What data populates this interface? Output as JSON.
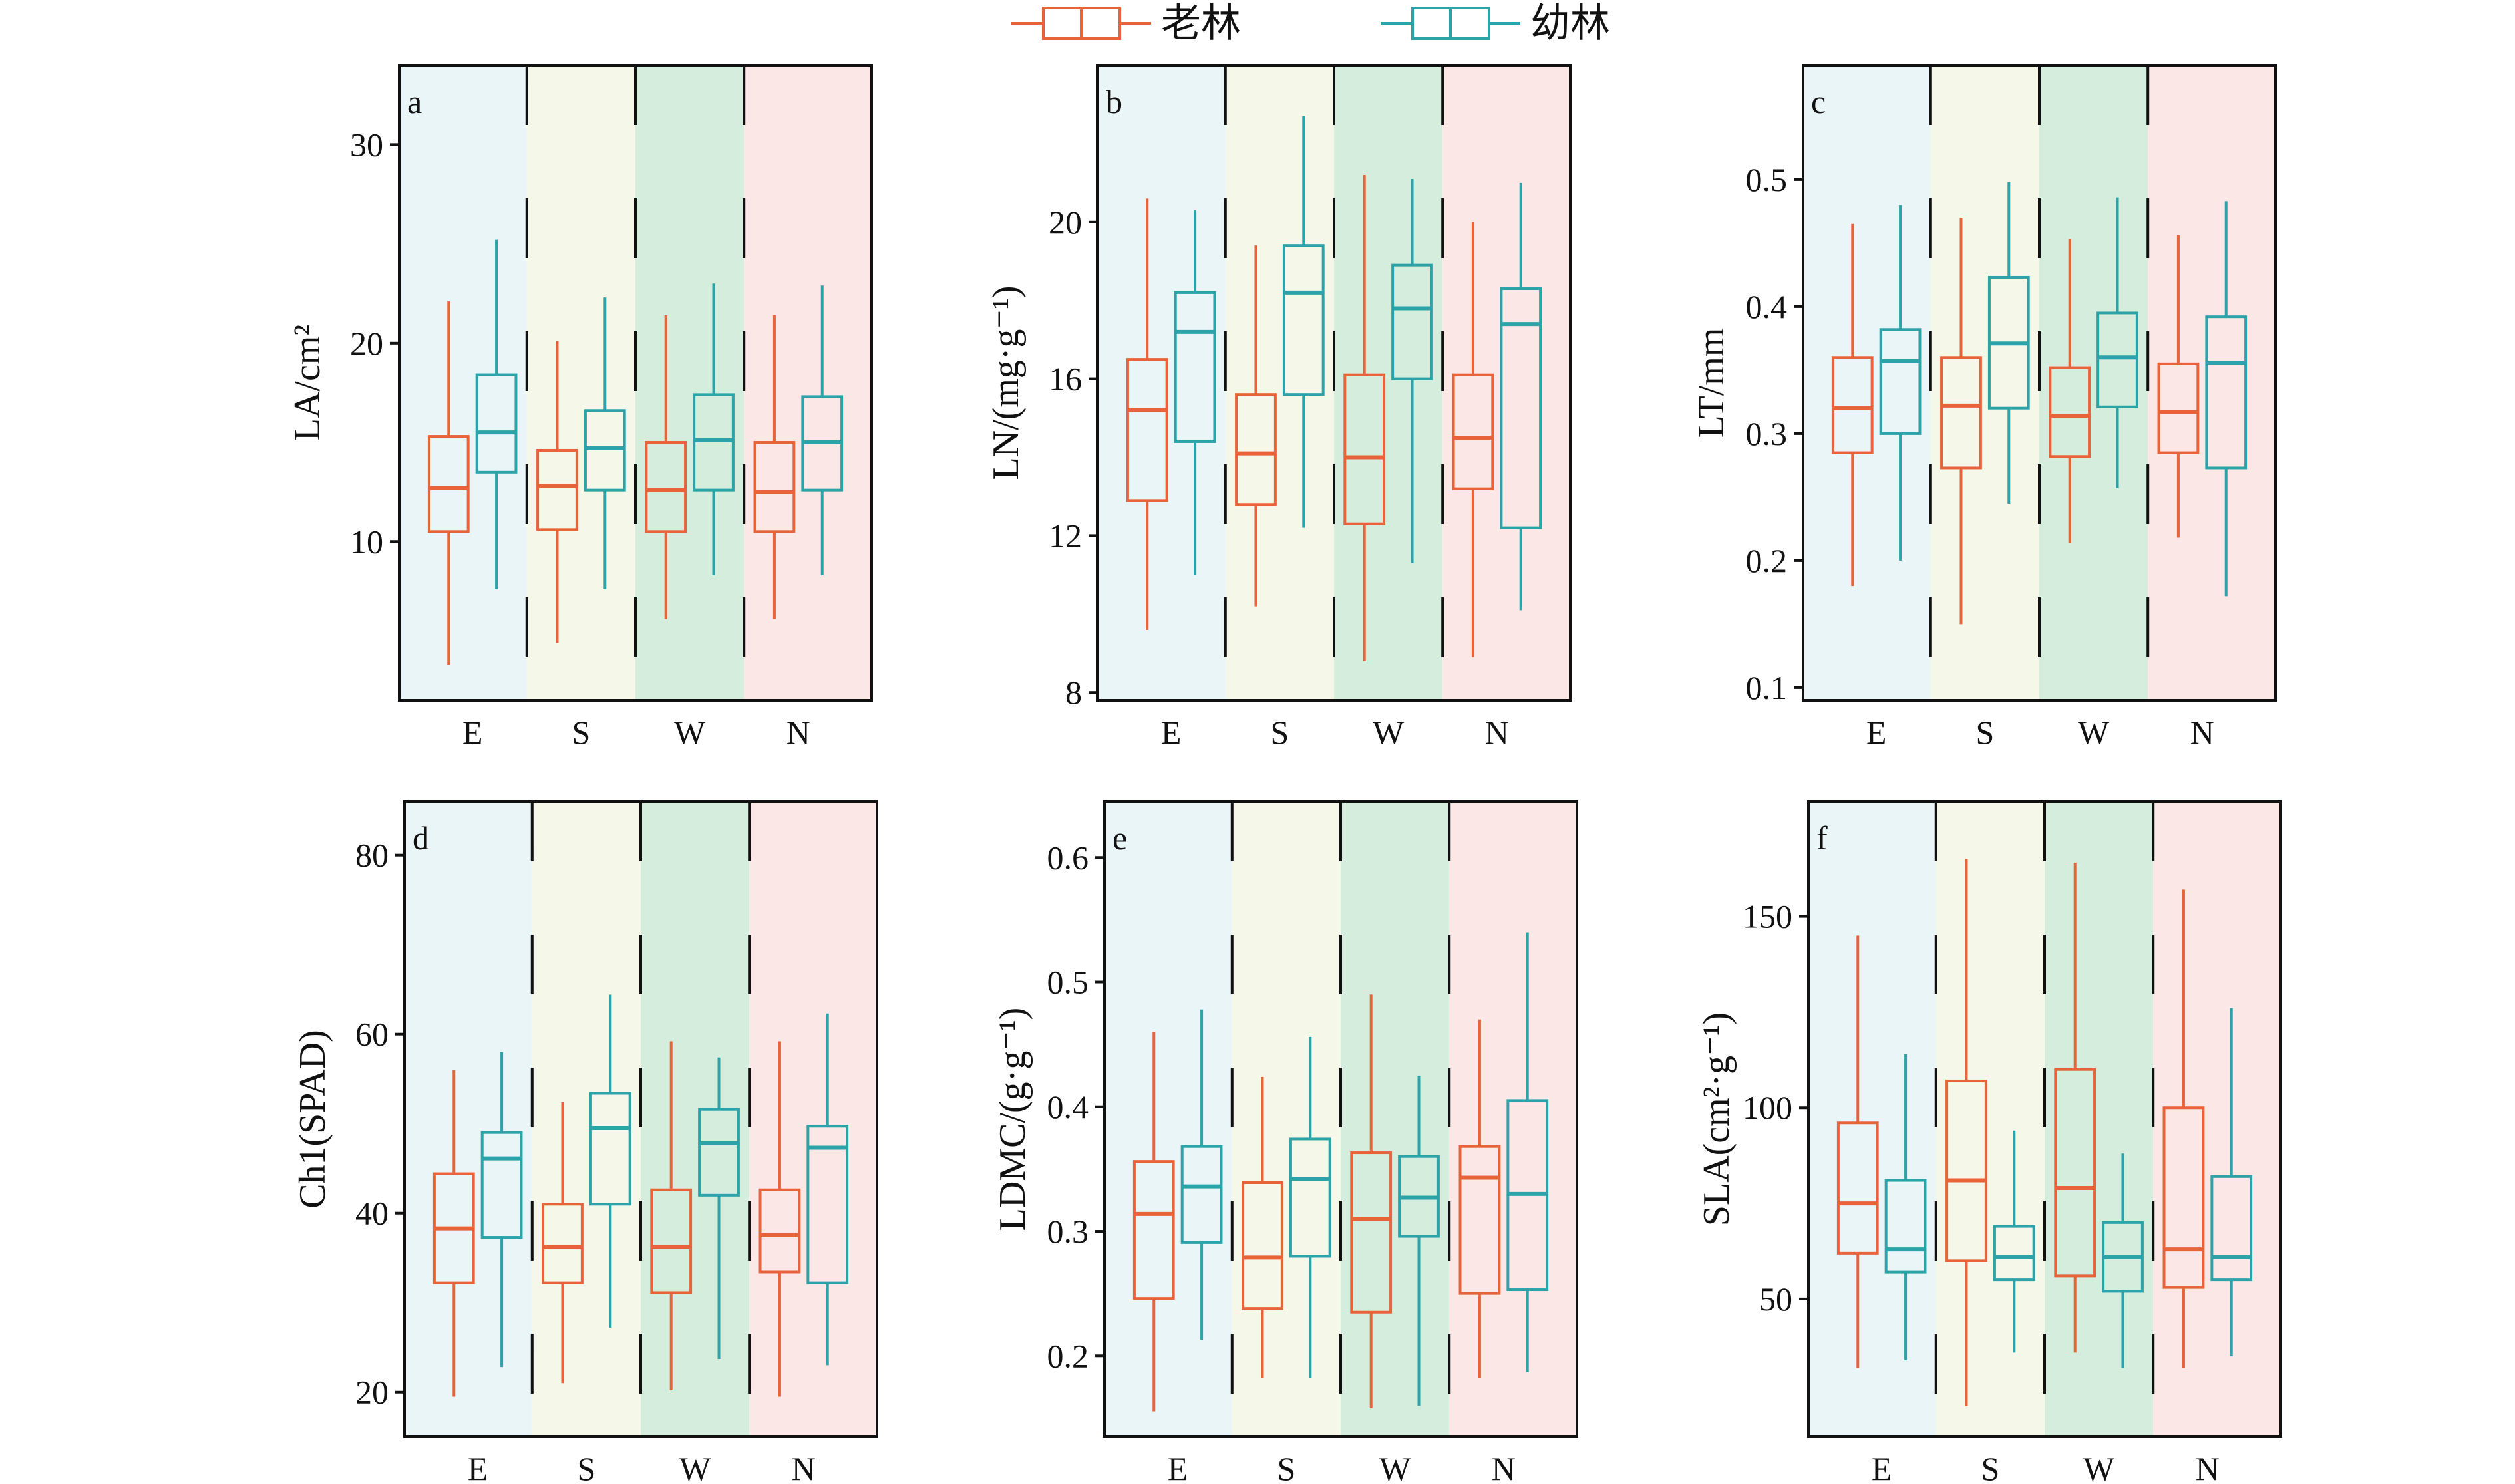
{
  "chart_data": {
    "legend": {
      "placement": "top-center",
      "entries": [
        {
          "label": "老林",
          "color": "#E8623A"
        },
        {
          "label": "幼林",
          "color": "#2BA3A8"
        }
      ]
    },
    "group_colors": [
      "#EAF5F8",
      "#F5F8E8",
      "#D5EDDC",
      "#FBE8E6"
    ],
    "panels": [
      {
        "type": "box",
        "letter": "a",
        "ylabel": "LA/cm²",
        "categories": [
          "E",
          "S",
          "W",
          "N"
        ],
        "ylim": [
          2,
          34
        ],
        "yticks": [
          10,
          20,
          30
        ],
        "series": [
          {
            "name": "老林",
            "boxes": [
              {
                "min": 3.8,
                "q1": 10.5,
                "median": 12.7,
                "q3": 15.3,
                "max": 22.1
              },
              {
                "min": 4.9,
                "q1": 10.6,
                "median": 12.8,
                "q3": 14.6,
                "max": 20.1
              },
              {
                "min": 6.1,
                "q1": 10.5,
                "median": 12.6,
                "q3": 15.0,
                "max": 21.4
              },
              {
                "min": 6.1,
                "q1": 10.5,
                "median": 12.5,
                "q3": 15.0,
                "max": 21.4
              }
            ]
          },
          {
            "name": "幼林",
            "boxes": [
              {
                "min": 7.6,
                "q1": 13.5,
                "median": 15.5,
                "q3": 18.4,
                "max": 25.2
              },
              {
                "min": 7.6,
                "q1": 12.6,
                "median": 14.7,
                "q3": 16.6,
                "max": 22.3
              },
              {
                "min": 8.3,
                "q1": 12.6,
                "median": 15.1,
                "q3": 17.4,
                "max": 23.0
              },
              {
                "min": 8.3,
                "q1": 12.6,
                "median": 15.0,
                "q3": 17.3,
                "max": 22.9
              }
            ]
          }
        ]
      },
      {
        "type": "box",
        "letter": "b",
        "ylabel": "LN/(mg·g⁻¹)",
        "categories": [
          "E",
          "S",
          "W",
          "N"
        ],
        "ylim": [
          7.8,
          24
        ],
        "yticks": [
          8,
          12,
          16,
          20
        ],
        "series": [
          {
            "name": "老林",
            "boxes": [
              {
                "min": 9.6,
                "q1": 12.9,
                "median": 15.2,
                "q3": 16.5,
                "max": 20.6
              },
              {
                "min": 10.2,
                "q1": 12.8,
                "median": 14.1,
                "q3": 15.6,
                "max": 19.4
              },
              {
                "min": 8.8,
                "q1": 12.3,
                "median": 14.0,
                "q3": 16.1,
                "max": 21.2
              },
              {
                "min": 8.9,
                "q1": 13.2,
                "median": 14.5,
                "q3": 16.1,
                "max": 20.0
              }
            ]
          },
          {
            "name": "幼林",
            "boxes": [
              {
                "min": 11.0,
                "q1": 14.4,
                "median": 17.2,
                "q3": 18.2,
                "max": 20.3
              },
              {
                "min": 12.2,
                "q1": 15.6,
                "median": 18.2,
                "q3": 19.4,
                "max": 22.7
              },
              {
                "min": 11.3,
                "q1": 16.0,
                "median": 17.8,
                "q3": 18.9,
                "max": 21.1
              },
              {
                "min": 10.1,
                "q1": 12.2,
                "median": 17.4,
                "q3": 18.3,
                "max": 21.0
              }
            ]
          }
        ]
      },
      {
        "type": "box",
        "letter": "c",
        "ylabel": "LT/mm",
        "categories": [
          "E",
          "S",
          "W",
          "N"
        ],
        "ylim": [
          0.09,
          0.59
        ],
        "yticks": [
          0.1,
          0.2,
          0.3,
          0.4,
          0.5
        ],
        "series": [
          {
            "name": "老林",
            "boxes": [
              {
                "min": 0.18,
                "q1": 0.285,
                "median": 0.32,
                "q3": 0.36,
                "max": 0.465
              },
              {
                "min": 0.15,
                "q1": 0.273,
                "median": 0.322,
                "q3": 0.36,
                "max": 0.47
              },
              {
                "min": 0.214,
                "q1": 0.282,
                "median": 0.314,
                "q3": 0.352,
                "max": 0.453
              },
              {
                "min": 0.218,
                "q1": 0.285,
                "median": 0.317,
                "q3": 0.355,
                "max": 0.456
              }
            ]
          },
          {
            "name": "幼林",
            "boxes": [
              {
                "min": 0.2,
                "q1": 0.3,
                "median": 0.357,
                "q3": 0.382,
                "max": 0.48
              },
              {
                "min": 0.245,
                "q1": 0.32,
                "median": 0.371,
                "q3": 0.423,
                "max": 0.498
              },
              {
                "min": 0.257,
                "q1": 0.321,
                "median": 0.36,
                "q3": 0.395,
                "max": 0.486
              },
              {
                "min": 0.172,
                "q1": 0.273,
                "median": 0.356,
                "q3": 0.392,
                "max": 0.483
              }
            ]
          }
        ]
      },
      {
        "type": "box",
        "letter": "d",
        "ylabel": "Ch1(SPAD)",
        "categories": [
          "E",
          "S",
          "W",
          "N"
        ],
        "ylim": [
          15,
          86
        ],
        "yticks": [
          20,
          40,
          60,
          80
        ],
        "series": [
          {
            "name": "老林",
            "boxes": [
              {
                "min": 19.5,
                "q1": 32.2,
                "median": 38.3,
                "q3": 44.4,
                "max": 56.0
              },
              {
                "min": 21.0,
                "q1": 32.2,
                "median": 36.2,
                "q3": 41.0,
                "max": 52.4
              },
              {
                "min": 20.2,
                "q1": 31.1,
                "median": 36.2,
                "q3": 42.6,
                "max": 59.2
              },
              {
                "min": 19.5,
                "q1": 33.4,
                "median": 37.6,
                "q3": 42.6,
                "max": 59.2
              }
            ]
          },
          {
            "name": "幼林",
            "boxes": [
              {
                "min": 22.8,
                "q1": 37.3,
                "median": 46.1,
                "q3": 49.0,
                "max": 58.0
              },
              {
                "min": 27.2,
                "q1": 41.0,
                "median": 49.5,
                "q3": 53.4,
                "max": 64.4
              },
              {
                "min": 23.7,
                "q1": 42.0,
                "median": 47.8,
                "q3": 51.6,
                "max": 57.4
              },
              {
                "min": 23.0,
                "q1": 32.2,
                "median": 47.3,
                "q3": 49.7,
                "max": 62.3
              }
            ]
          }
        ]
      },
      {
        "type": "box",
        "letter": "e",
        "ylabel": "LDMC/(g·g⁻¹)",
        "categories": [
          "E",
          "S",
          "W",
          "N"
        ],
        "ylim": [
          0.135,
          0.645
        ],
        "yticks": [
          0.2,
          0.3,
          0.4,
          0.5,
          0.6
        ],
        "series": [
          {
            "name": "老林",
            "boxes": [
              {
                "min": 0.155,
                "q1": 0.246,
                "median": 0.314,
                "q3": 0.356,
                "max": 0.46
              },
              {
                "min": 0.182,
                "q1": 0.238,
                "median": 0.279,
                "q3": 0.339,
                "max": 0.424
              },
              {
                "min": 0.158,
                "q1": 0.235,
                "median": 0.31,
                "q3": 0.363,
                "max": 0.49
              },
              {
                "min": 0.182,
                "q1": 0.25,
                "median": 0.343,
                "q3": 0.368,
                "max": 0.47
              }
            ]
          },
          {
            "name": "幼林",
            "boxes": [
              {
                "min": 0.213,
                "q1": 0.291,
                "median": 0.336,
                "q3": 0.368,
                "max": 0.478
              },
              {
                "min": 0.182,
                "q1": 0.28,
                "median": 0.342,
                "q3": 0.374,
                "max": 0.456
              },
              {
                "min": 0.16,
                "q1": 0.296,
                "median": 0.327,
                "q3": 0.36,
                "max": 0.425
              },
              {
                "min": 0.187,
                "q1": 0.253,
                "median": 0.33,
                "q3": 0.405,
                "max": 0.54
              }
            ]
          }
        ]
      },
      {
        "type": "box",
        "letter": "f",
        "ylabel": "SLA(cm²·g⁻¹)",
        "categories": [
          "E",
          "S",
          "W",
          "N"
        ],
        "ylim": [
          14,
          180
        ],
        "yticks": [
          50,
          100,
          150
        ],
        "series": [
          {
            "name": "老林",
            "boxes": [
              {
                "min": 32,
                "q1": 62,
                "median": 75,
                "q3": 96,
                "max": 145
              },
              {
                "min": 22,
                "q1": 60,
                "median": 81,
                "q3": 107,
                "max": 165
              },
              {
                "min": 36,
                "q1": 56,
                "median": 79,
                "q3": 110,
                "max": 164
              },
              {
                "min": 32,
                "q1": 53,
                "median": 63,
                "q3": 100,
                "max": 157
              }
            ]
          },
          {
            "name": "幼林",
            "boxes": [
              {
                "min": 34,
                "q1": 57,
                "median": 63,
                "q3": 81,
                "max": 114
              },
              {
                "min": 36,
                "q1": 55,
                "median": 61,
                "q3": 69,
                "max": 94
              },
              {
                "min": 32,
                "q1": 52,
                "median": 61,
                "q3": 70,
                "max": 88
              },
              {
                "min": 35,
                "q1": 55,
                "median": 61,
                "q3": 82,
                "max": 126
              }
            ]
          }
        ]
      }
    ]
  }
}
